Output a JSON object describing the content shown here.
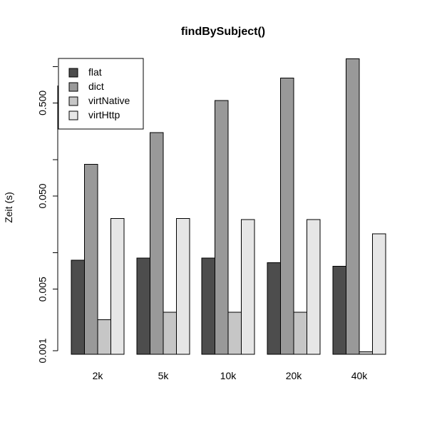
{
  "chart_data": {
    "type": "bar",
    "title": "findBySubject()",
    "xlabel": "",
    "ylabel": "Zeit (s)",
    "y_scale": "log",
    "ylim": [
      0.001,
      1.5
    ],
    "ytick_values": [
      0.001,
      0.005,
      0.05,
      0.5
    ],
    "ytick_labels": [
      "0.001",
      "0.005",
      "0.050",
      "0.500"
    ],
    "categories": [
      "2k",
      "5k",
      "10k",
      "20k",
      "40k"
    ],
    "legend_position": "top-left",
    "colors": [
      "#4d4d4d",
      "#999999",
      "#c6c6c6",
      "#e6e6e6"
    ],
    "series": [
      {
        "name": "flat",
        "values": [
          0.0102,
          0.0108,
          0.0108,
          0.0096,
          0.0088
        ]
      },
      {
        "name": "dict",
        "values": [
          0.11,
          0.24,
          0.53,
          0.92,
          1.49
        ]
      },
      {
        "name": "virtNative",
        "values": [
          0.00235,
          0.00283,
          0.00283,
          0.00283,
          0.00106
        ]
      },
      {
        "name": "virtHttp",
        "values": [
          0.0287,
          0.0287,
          0.028,
          0.028,
          0.0196
        ]
      }
    ]
  }
}
